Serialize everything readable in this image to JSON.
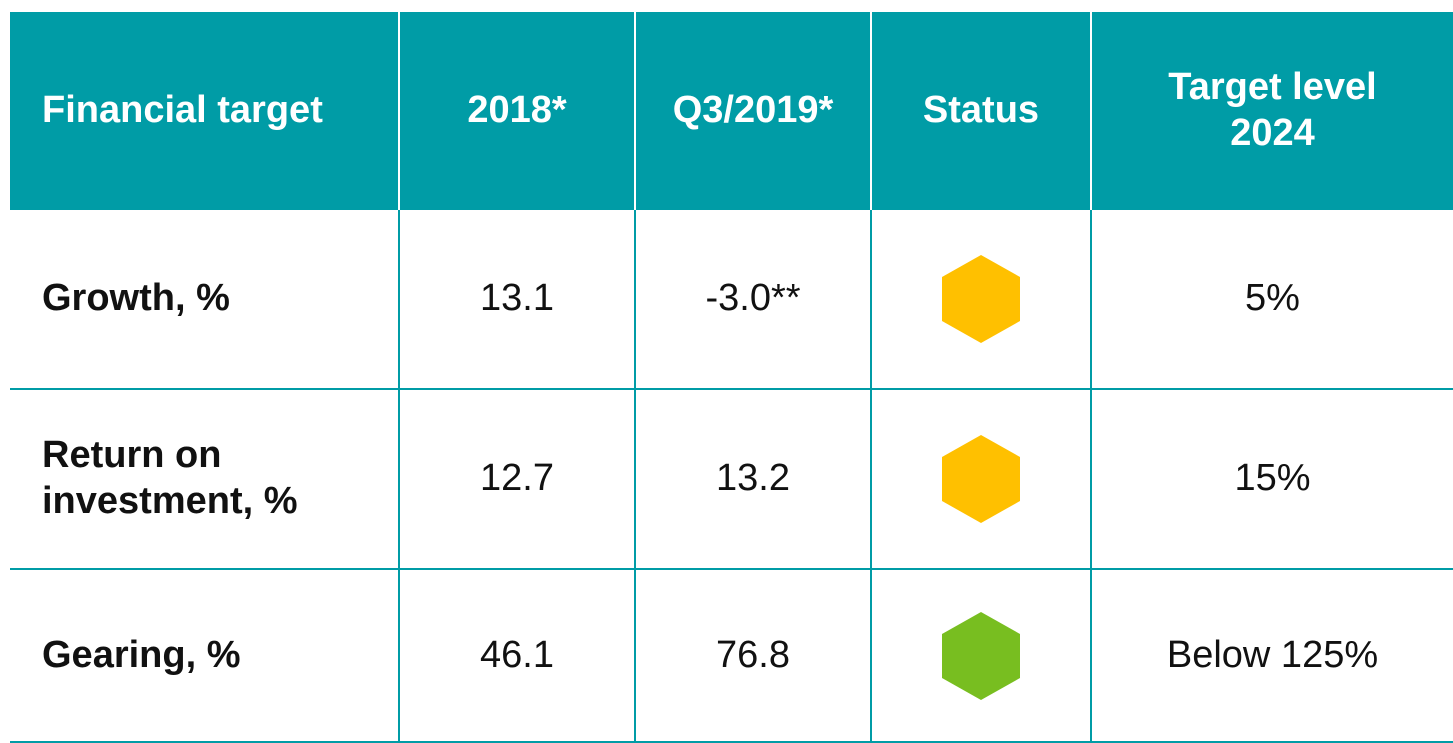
{
  "table": {
    "columns": [
      "Financial target",
      "2018*",
      "Q3/2019*",
      "Status",
      "Target level 2024"
    ],
    "rows": [
      {
        "cells": [
          "Growth, %",
          "13.1",
          "-3.0**",
          "5%"
        ],
        "status_color": "#ffc000"
      },
      {
        "cells": [
          "Return on investment, %",
          "12.7",
          "13.2",
          "15%"
        ],
        "status_color": "#ffc000"
      },
      {
        "cells": [
          "Gearing, %",
          "46.1",
          "76.8",
          "Below 125%"
        ],
        "status_color": "#78be20"
      }
    ]
  }
}
